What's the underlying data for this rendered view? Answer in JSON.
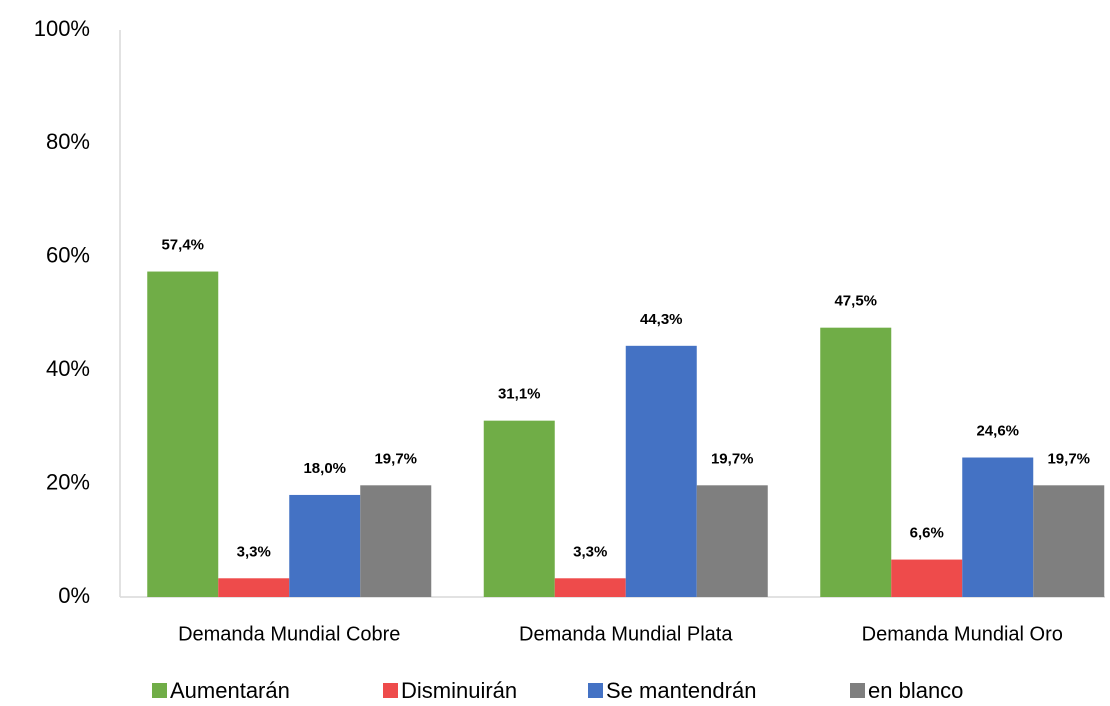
{
  "chart_data": {
    "type": "bar",
    "categories": [
      "Demanda Mundial Cobre",
      "Demanda Mundial Plata",
      "Demanda Mundial Oro"
    ],
    "series": [
      {
        "name": "Aumentarán",
        "color": "#70ad47",
        "values": [
          57.4,
          31.1,
          47.5
        ],
        "value_labels": [
          "57,4%",
          "31,1%",
          "47,5%"
        ]
      },
      {
        "name": "Disminuirán",
        "color": "#ee4b4b",
        "values": [
          3.3,
          3.3,
          6.6
        ],
        "value_labels": [
          "3,3%",
          "3,3%",
          "6,6%"
        ]
      },
      {
        "name": "Se mantendrán",
        "color": "#4472c4",
        "values": [
          18.0,
          44.3,
          24.6
        ],
        "value_labels": [
          "18,0%",
          "44,3%",
          "24,6%"
        ]
      },
      {
        "name": "en blanco",
        "color": "#7f7f7f",
        "values": [
          19.7,
          19.7,
          19.7
        ],
        "value_labels": [
          "19,7%",
          "19,7%",
          "19,7%"
        ]
      }
    ],
    "ylim": [
      0,
      100
    ],
    "yticks": [
      {
        "value": 0,
        "label": "0%"
      },
      {
        "value": 20,
        "label": "20%"
      },
      {
        "value": 40,
        "label": "40%"
      },
      {
        "value": 60,
        "label": "60%"
      },
      {
        "value": 80,
        "label": "80%"
      },
      {
        "value": 100,
        "label": "100%"
      }
    ],
    "grid": false,
    "legend": "bottom"
  }
}
